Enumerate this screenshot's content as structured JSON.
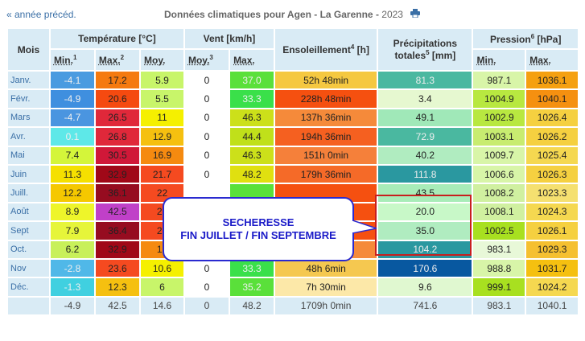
{
  "nav": {
    "prev_label": "« année précéd."
  },
  "header": {
    "title": "Données climatiques pour Agen - La Garenne - ",
    "year": "2023",
    "print_icon": "printer-icon"
  },
  "columns": {
    "mois": "Mois",
    "temp": "Température [°C]",
    "vent": "Vent [km/h]",
    "sun": "Ensoleillement",
    "sun_sup": "4",
    "sun_unit": " [h]",
    "prec1": "Précipitations",
    "prec2": "totales",
    "prec_sup": "5",
    "prec_unit": " [mm]",
    "press": "Pression",
    "press_sup": "6",
    "press_unit": " [hPa]",
    "min": "Min.",
    "min_sup": "1",
    "max": "Max.",
    "max_sup": "2",
    "moy": "Moy.",
    "vmoy": "Moy.",
    "vmoy_sup": "3",
    "vmax": "Max.",
    "pmin": "Min.",
    "pmax": "Max."
  },
  "rows": [
    {
      "m": "Janv.",
      "tmin": "-4.1",
      "tmax": "17.2",
      "tmoy": "5.9",
      "vmoy": "0",
      "vmax": "37.0",
      "sun": "52h 48min",
      "prec": "81.3",
      "pmin": "987.1",
      "pmax": "1036.1"
    },
    {
      "m": "Févr.",
      "tmin": "-4.9",
      "tmax": "20.6",
      "tmoy": "5.5",
      "vmoy": "0",
      "vmax": "33.3",
      "sun": "228h 48min",
      "prec": "3.4",
      "pmin": "1004.9",
      "pmax": "1040.1"
    },
    {
      "m": "Mars",
      "tmin": "-4.7",
      "tmax": "26.5",
      "tmoy": "11",
      "vmoy": "0",
      "vmax": "46.3",
      "sun": "137h 36min",
      "prec": "49.1",
      "pmin": "1002.9",
      "pmax": "1026.4"
    },
    {
      "m": "Avr.",
      "tmin": "0.1",
      "tmax": "26.8",
      "tmoy": "12.9",
      "vmoy": "0",
      "vmax": "44.4",
      "sun": "194h 36min",
      "prec": "72.9",
      "pmin": "1003.1",
      "pmax": "1026.2"
    },
    {
      "m": "Mai",
      "tmin": "7.4",
      "tmax": "30.5",
      "tmoy": "16.9",
      "vmoy": "0",
      "vmax": "46.3",
      "sun": "151h 0min",
      "prec": "40.2",
      "pmin": "1009.7",
      "pmax": "1025.4"
    },
    {
      "m": "Juin",
      "tmin": "11.3",
      "tmax": "32.9",
      "tmoy": "21.7",
      "vmoy": "0",
      "vmax": "48.2",
      "sun": "179h 36min",
      "prec": "111.8",
      "pmin": "1006.6",
      "pmax": "1026.3"
    },
    {
      "m": "Juill.",
      "tmin": "12.2",
      "tmax": "36.1",
      "tmoy": "22",
      "vmoy": "",
      "vmax": "",
      "sun": "",
      "prec": "43.5",
      "pmin": "1008.2",
      "pmax": "1023.3"
    },
    {
      "m": "Août",
      "tmin": "8.9",
      "tmax": "42.5",
      "tmoy": "23",
      "vmoy": "",
      "vmax": "",
      "sun": "",
      "prec": "20.0",
      "pmin": "1008.1",
      "pmax": "1024.3"
    },
    {
      "m": "Sept",
      "tmin": "7.9",
      "tmax": "36.4",
      "tmoy": "21",
      "vmoy": "",
      "vmax": "",
      "sun": "",
      "prec": "35.0",
      "pmin": "1002.5",
      "pmax": "1026.1"
    },
    {
      "m": "Oct.",
      "tmin": "6.2",
      "tmax": "32.9",
      "tmoy": "17",
      "vmoy": "0",
      "vmax": "40.7",
      "sun": "135h 42min",
      "prec": "104.2",
      "pmin": "983.1",
      "pmax": "1029.3"
    },
    {
      "m": "Nov",
      "tmin": "-2.8",
      "tmax": "23.6",
      "tmoy": "10.6",
      "vmoy": "0",
      "vmax": "33.3",
      "sun": "48h 6min",
      "prec": "170.6",
      "pmin": "988.8",
      "pmax": "1031.7"
    },
    {
      "m": "Déc.",
      "tmin": "-1.3",
      "tmax": "12.3",
      "tmoy": "6",
      "vmoy": "0",
      "vmax": "35.2",
      "sun": "7h 30min",
      "prec": "9.6",
      "pmin": "999.1",
      "pmax": "1024.2"
    }
  ],
  "totals": {
    "tmin": "-4.9",
    "tmax": "42.5",
    "tmoy": "14.6",
    "vmoy": "0",
    "vmax": "48.2",
    "sun": "1709h 0min",
    "prec": "741.6",
    "pmin": "983.1",
    "pmax": "1040.1"
  },
  "callout": {
    "line1": "SECHERESSE",
    "line2": "FIN JUILLET / FIN SEPTEMBRE"
  },
  "colors": {
    "tmin": [
      "#4a9be0",
      "#3f8fdf",
      "#4a95e0",
      "#5ee8e8",
      "#d4f53a",
      "#f5e000",
      "#f5c800",
      "#eef52a",
      "#e6f53a",
      "#c8f05a",
      "#50b8e8",
      "#40d0e0"
    ],
    "tmax": [
      "#f57a10",
      "#f54a10",
      "#e0283a",
      "#e0283a",
      "#d01838",
      "#a00818",
      "#960c20",
      "#c040c8",
      "#960c20",
      "#a00818",
      "#f54a20",
      "#f5c010"
    ],
    "tmoy": [
      "#c8f56a",
      "#c8f56a",
      "#f5f000",
      "#f5c010",
      "#f58a10",
      "#f54a20",
      "#f54a20",
      "#f54a20",
      "#f54a20",
      "#f58a10",
      "#f5f000",
      "#c8f56a"
    ],
    "vmax": [
      "#5ae03a",
      "#3ae04a",
      "#cce01a",
      "#c0e01a",
      "#cce01a",
      "#e0e010",
      "#5ae03a",
      "#5ae03a",
      "#5ae03a",
      "#90e030",
      "#3ae04a",
      "#5ae03a"
    ],
    "sun": [
      "#f5c840",
      "#f55010",
      "#f58a3a",
      "#f56020",
      "#f5803a",
      "#f56a28",
      "#f55010",
      "#f55010",
      "#f55010",
      "#f58a3a",
      "#f5c850",
      "#fce8a8"
    ],
    "prec": [
      "#4ab8a0",
      "#e6f8d0",
      "#a0e8b8",
      "#4ab8a0",
      "#b0ecc0",
      "#2a98a0",
      "#a8ecb8",
      "#c8f8c8",
      "#b0ecc0",
      "#2a98a0",
      "#0858a0",
      "#e0f8d0"
    ],
    "pmin": [
      "#d8f5a8",
      "#b8e840",
      "#b8e840",
      "#c8ec70",
      "#d8f5a8",
      "#d8f5a8",
      "#d0f0a0",
      "#d0f0a0",
      "#a8e020",
      "#e8f8d8",
      "#d8f5a8",
      "#a8e020"
    ],
    "pmax": [
      "#f5a010",
      "#f59010",
      "#f5d040",
      "#f5d040",
      "#f5d850",
      "#f5d040",
      "#f5e070",
      "#f5d850",
      "#f5d040",
      "#f5c030",
      "#f5c010",
      "#f5d850"
    ]
  },
  "white_text": {
    "tmin": [
      true,
      true,
      true,
      true,
      false,
      false,
      false,
      false,
      false,
      false,
      true,
      true
    ],
    "vmax": [
      true,
      true,
      false,
      false,
      false,
      false,
      false,
      false,
      false,
      false,
      true,
      true
    ],
    "prec": [
      true,
      false,
      false,
      true,
      false,
      true,
      false,
      false,
      false,
      true,
      true,
      false
    ]
  }
}
